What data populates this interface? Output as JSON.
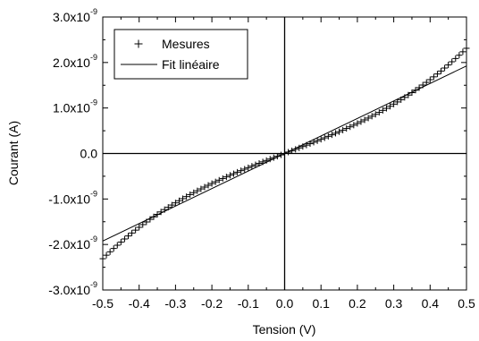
{
  "chart_data": {
    "type": "scatter",
    "xlabel": "Tension (V)",
    "ylabel": "Courant (A)",
    "xlim": [
      -0.5,
      0.5
    ],
    "ylim": [
      -3e-09,
      3e-09
    ],
    "x_ticks": [
      -0.5,
      -0.4,
      -0.3,
      -0.2,
      -0.1,
      0.0,
      0.1,
      0.2,
      0.3,
      0.4,
      0.5
    ],
    "x_tick_labels": [
      "-0.5",
      "-0.4",
      "-0.3",
      "-0.2",
      "-0.1",
      "0.0",
      "0.1",
      "0.2",
      "0.3",
      "0.4",
      "0.5"
    ],
    "y_ticks": [
      {
        "value": -3e-09,
        "mantissa": "-3.0x10",
        "exponent": "-9"
      },
      {
        "value": -2e-09,
        "mantissa": "-2.0x10",
        "exponent": "-9"
      },
      {
        "value": -1e-09,
        "mantissa": "-1.0x10",
        "exponent": "-9"
      },
      {
        "value": 0.0,
        "mantissa": "0.0",
        "exponent": ""
      },
      {
        "value": 1e-09,
        "mantissa": "1.0x10",
        "exponent": "-9"
      },
      {
        "value": 2e-09,
        "mantissa": "2.0x10",
        "exponent": "-9"
      },
      {
        "value": 3e-09,
        "mantissa": "3.0x10",
        "exponent": "-9"
      }
    ],
    "grid": false,
    "legend_position": "top-left",
    "series": [
      {
        "name": "Mesures",
        "type": "scatter",
        "marker": "+",
        "color": "#000000",
        "x_start": -0.5,
        "x_end": 0.5,
        "x_step": 0.01,
        "model": "y = a*V + b*V^3",
        "a": 3.05e-09,
        "b": 6.3e-09
      },
      {
        "name": "Fit linéaire",
        "type": "line",
        "color": "#000000",
        "slope": 3.85e-09,
        "intercept": 0.0,
        "x": [
          -0.5,
          0.5
        ],
        "y": [
          -1.925e-09,
          1.925e-09
        ]
      }
    ]
  }
}
